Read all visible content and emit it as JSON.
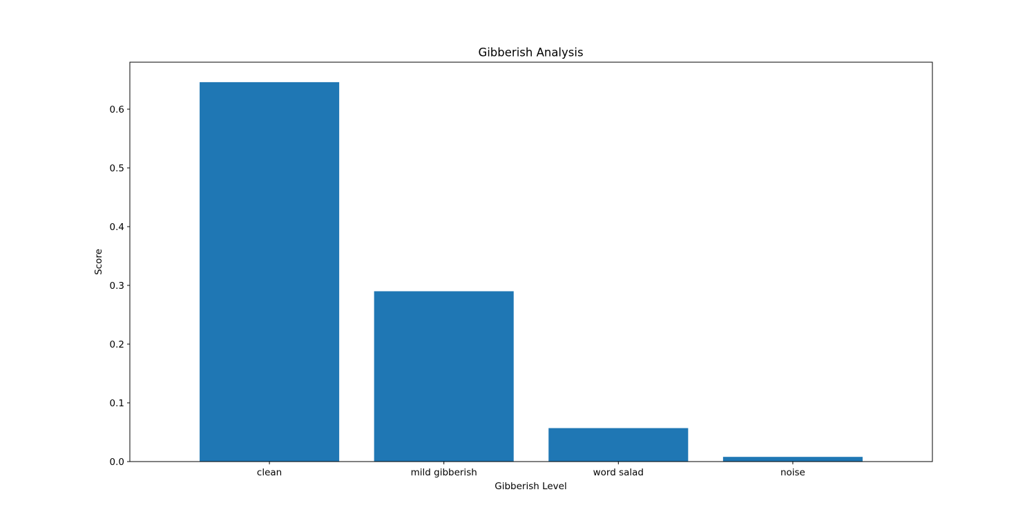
{
  "chart_data": {
    "type": "bar",
    "title": "Gibberish Analysis",
    "xlabel": "Gibberish Level",
    "ylabel": "Score",
    "categories": [
      "clean",
      "mild gibberish",
      "word salad",
      "noise"
    ],
    "values": [
      0.646,
      0.29,
      0.057,
      0.008
    ],
    "ylim": [
      0,
      0.68
    ],
    "yticks": [
      0.0,
      0.1,
      0.2,
      0.3,
      0.4,
      0.5,
      0.6
    ],
    "ytick_labels": [
      "0.0",
      "0.1",
      "0.2",
      "0.3",
      "0.4",
      "0.5",
      "0.6"
    ],
    "bar_color": "#1f77b4",
    "grid": false,
    "legend": false
  }
}
